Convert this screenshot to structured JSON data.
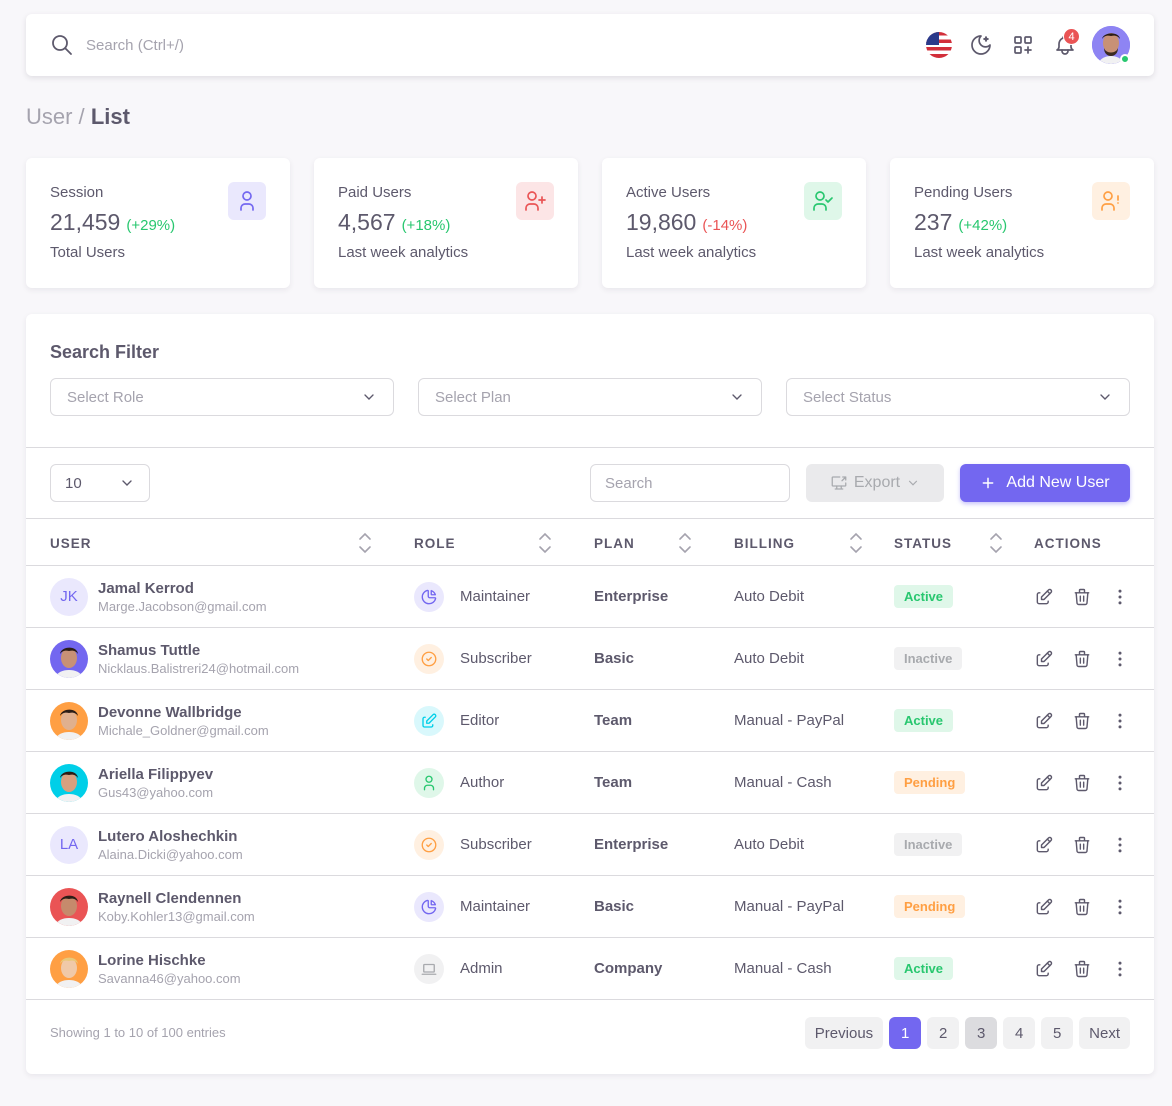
{
  "navbar": {
    "search_placeholder": "Search (Ctrl+/)",
    "notification_count": "4"
  },
  "breadcrumb": {
    "parent": "User /",
    "current": "List"
  },
  "stats": [
    {
      "title": "Session",
      "value": "21,459",
      "change": "(+29%)",
      "sub": "Total Users",
      "trend": "positive",
      "icon": "user-icon",
      "color": "#7367f0",
      "bg": "#eae8fd"
    },
    {
      "title": "Paid Users",
      "value": "4,567",
      "change": "(+18%)",
      "sub": "Last week analytics",
      "trend": "positive",
      "icon": "user-plus-icon",
      "color": "#ea5455",
      "bg": "#fce5e6"
    },
    {
      "title": "Active Users",
      "value": "19,860",
      "change": "(-14%)",
      "sub": "Last week analytics",
      "trend": "negative",
      "icon": "user-check-icon",
      "color": "#28c76f",
      "bg": "#dff7e9"
    },
    {
      "title": "Pending Users",
      "value": "237",
      "change": "(+42%)",
      "sub": "Last week analytics",
      "trend": "positive",
      "icon": "user-exclamation-icon",
      "color": "#ff9f43",
      "bg": "#fff0e1"
    }
  ],
  "filter": {
    "title": "Search Filter",
    "role_placeholder": "Select Role",
    "plan_placeholder": "Select Plan",
    "status_placeholder": "Select Status"
  },
  "toolbar": {
    "page_size": "10",
    "search_placeholder": "Search",
    "export_label": "Export",
    "add_label": "Add New User"
  },
  "table": {
    "headers": {
      "user": "USER",
      "role": "ROLE",
      "plan": "PLAN",
      "billing": "BILLING",
      "status": "STATUS",
      "actions": "ACTIONS"
    },
    "rows": [
      {
        "name": "Jamal Kerrod",
        "email": "Marge.Jacobson@gmail.com",
        "initials": "JK",
        "avatar": "initials",
        "role": "Maintainer",
        "role_icon": "chart-pie-icon",
        "plan": "Enterprise",
        "billing": "Auto Debit",
        "status": "Active"
      },
      {
        "name": "Shamus Tuttle",
        "email": "Nicklaus.Balistreri24@hotmail.com",
        "initials": "",
        "avatar": "photo",
        "role": "Subscriber",
        "role_icon": "circle-check-icon",
        "plan": "Basic",
        "billing": "Auto Debit",
        "status": "Inactive"
      },
      {
        "name": "Devonne Wallbridge",
        "email": "Michale_Goldner@gmail.com",
        "initials": "",
        "avatar": "photo",
        "role": "Editor",
        "role_icon": "edit-icon",
        "plan": "Team",
        "billing": "Manual - PayPal",
        "status": "Active"
      },
      {
        "name": "Ariella Filippyev",
        "email": "Gus43@yahoo.com",
        "initials": "",
        "avatar": "photo",
        "role": "Author",
        "role_icon": "user-icon",
        "plan": "Team",
        "billing": "Manual - Cash",
        "status": "Pending"
      },
      {
        "name": "Lutero Aloshechkin",
        "email": "Alaina.Dicki@yahoo.com",
        "initials": "LA",
        "avatar": "initials",
        "role": "Subscriber",
        "role_icon": "circle-check-icon",
        "plan": "Enterprise",
        "billing": "Auto Debit",
        "status": "Inactive"
      },
      {
        "name": "Raynell Clendennen",
        "email": "Koby.Kohler13@gmail.com",
        "initials": "",
        "avatar": "photo",
        "role": "Maintainer",
        "role_icon": "chart-pie-icon",
        "plan": "Basic",
        "billing": "Manual - PayPal",
        "status": "Pending"
      },
      {
        "name": "Lorine Hischke",
        "email": "Savanna46@yahoo.com",
        "initials": "",
        "avatar": "photo",
        "role": "Admin",
        "role_icon": "device-laptop-icon",
        "plan": "Company",
        "billing": "Manual - Cash",
        "status": "Active"
      }
    ]
  },
  "footer": {
    "showing": "Showing 1 to 10 of 100 entries",
    "pages": [
      "Previous",
      "1",
      "2",
      "3",
      "4",
      "5",
      "Next"
    ],
    "current_page": "1"
  },
  "colors": {
    "primary": "#7367f0",
    "success": "#28c76f",
    "danger": "#ea5455",
    "warning": "#ff9f43",
    "info": "#00cfe8",
    "secondary": "#a8aaae"
  }
}
